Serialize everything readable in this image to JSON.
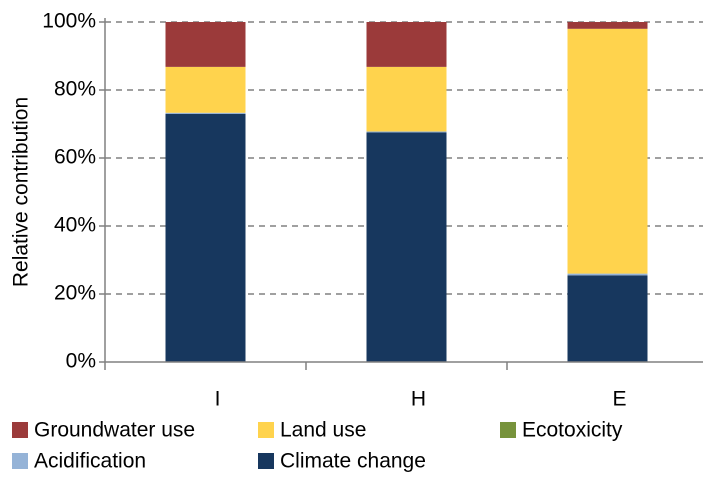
{
  "chart_data": {
    "type": "stacked_bar",
    "y_label": "Relative contribution",
    "categories": [
      "I",
      "H",
      "E"
    ],
    "series": [
      {
        "name": "Climate change",
        "color": "#17375e",
        "values": [
          73,
          67.5,
          25.5
        ]
      },
      {
        "name": "Acidification",
        "color": "#95b3d7",
        "values": [
          0.3,
          0.3,
          0.5
        ]
      },
      {
        "name": "Ecotoxicity",
        "color": "#77933c",
        "values": [
          0,
          0,
          0
        ]
      },
      {
        "name": "Land use",
        "color": "#ffd34d",
        "values": [
          13.5,
          19,
          72
        ]
      },
      {
        "name": "Groundwater use",
        "color": "#9b3a3a",
        "values": [
          13.2,
          13.2,
          2
        ]
      }
    ],
    "ylim": [
      0,
      100
    ],
    "yticks": [
      {
        "value": 0,
        "label": "0%"
      },
      {
        "value": 20,
        "label": "20%"
      },
      {
        "value": 40,
        "label": "40%"
      },
      {
        "value": 60,
        "label": "60%"
      },
      {
        "value": 80,
        "label": "80%"
      },
      {
        "value": 100,
        "label": "100%"
      }
    ],
    "grid": true
  }
}
